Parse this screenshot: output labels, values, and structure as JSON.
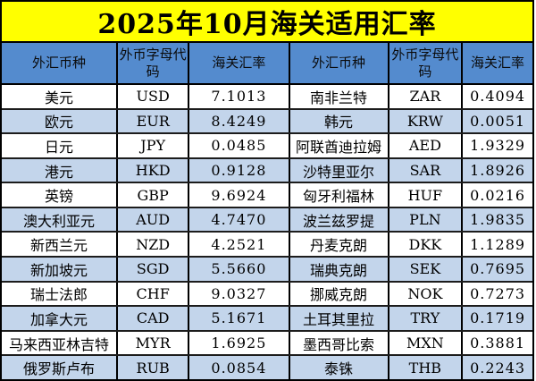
{
  "title": "2025年10月海关适用汇率",
  "columns": {
    "currency": "外汇币种",
    "code": "外币字母代码",
    "rate": "海关汇率"
  },
  "colors": {
    "title_bg": "#ffff00",
    "header_bg": "#548bce",
    "band_row_bg": "#c3d5eb",
    "border": "#000000"
  },
  "rows": [
    {
      "left": {
        "currency": "美元",
        "code": "USD",
        "rate": "7.1013"
      },
      "right": {
        "currency": "南非兰特",
        "code": "ZAR",
        "rate": "0.4094"
      }
    },
    {
      "left": {
        "currency": "欧元",
        "code": "EUR",
        "rate": "8.4249"
      },
      "right": {
        "currency": "韩元",
        "code": "KRW",
        "rate": "0.0051"
      }
    },
    {
      "left": {
        "currency": "日元",
        "code": "JPY",
        "rate": "0.0485"
      },
      "right": {
        "currency": "阿联酋迪拉姆",
        "code": "AED",
        "rate": "1.9329"
      }
    },
    {
      "left": {
        "currency": "港元",
        "code": "HKD",
        "rate": "0.9128"
      },
      "right": {
        "currency": "沙特里亚尔",
        "code": "SAR",
        "rate": "1.8926"
      }
    },
    {
      "left": {
        "currency": "英镑",
        "code": "GBP",
        "rate": "9.6924"
      },
      "right": {
        "currency": "匈牙利福林",
        "code": "HUF",
        "rate": "0.0216"
      }
    },
    {
      "left": {
        "currency": "澳大利亚元",
        "code": "AUD",
        "rate": "4.7470"
      },
      "right": {
        "currency": "波兰兹罗提",
        "code": "PLN",
        "rate": "1.9835"
      }
    },
    {
      "left": {
        "currency": "新西兰元",
        "code": "NZD",
        "rate": "4.2521"
      },
      "right": {
        "currency": "丹麦克朗",
        "code": "DKK",
        "rate": "1.1289"
      }
    },
    {
      "left": {
        "currency": "新加坡元",
        "code": "SGD",
        "rate": "5.5660"
      },
      "right": {
        "currency": "瑞典克朗",
        "code": "SEK",
        "rate": "0.7695"
      }
    },
    {
      "left": {
        "currency": "瑞士法郎",
        "code": "CHF",
        "rate": "9.0327"
      },
      "right": {
        "currency": "挪威克朗",
        "code": "NOK",
        "rate": "0.7273"
      }
    },
    {
      "left": {
        "currency": "加拿大元",
        "code": "CAD",
        "rate": "5.1671"
      },
      "right": {
        "currency": "土耳其里拉",
        "code": "TRY",
        "rate": "0.1719"
      }
    },
    {
      "left": {
        "currency": "马来西亚林吉特",
        "code": "MYR",
        "rate": "1.6925"
      },
      "right": {
        "currency": "墨西哥比索",
        "code": "MXN",
        "rate": "0.3881"
      }
    },
    {
      "left": {
        "currency": "俄罗斯卢布",
        "code": "RUB",
        "rate": "0.0854"
      },
      "right": {
        "currency": "泰铢",
        "code": "THB",
        "rate": "0.2243"
      }
    }
  ]
}
